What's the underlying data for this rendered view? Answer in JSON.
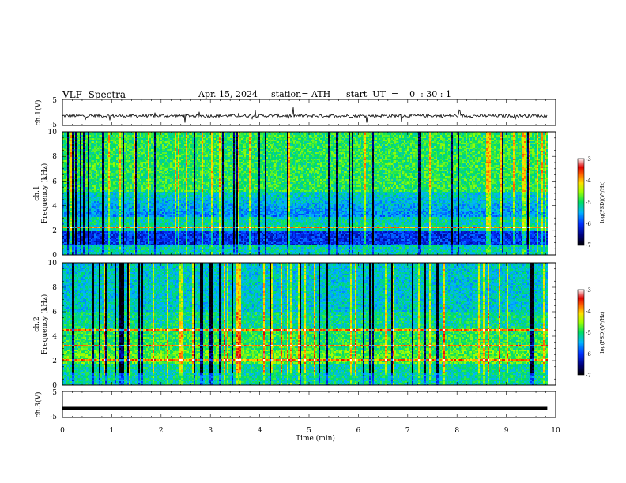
{
  "header": {
    "title": "VLF  Spectra",
    "date": "Apr. 15, 2024",
    "station": "station= ATH",
    "start_ut": "start  UT  =    0  : 30 : 1"
  },
  "chart_data": [
    {
      "type": "line",
      "title": "",
      "ylabel": "ch.1(V)",
      "ylim": [
        -5,
        5
      ],
      "yticks": [
        "5",
        "-5"
      ],
      "xlim": [
        0,
        10
      ],
      "x_end": 9.83,
      "description_values": {
        "baseline_V": -1.3,
        "noise_amplitude_V": 0.6
      }
    },
    {
      "type": "heatmap",
      "ylabel": "Frequency  (kHz)",
      "channel_label": "ch.1",
      "ylim": [
        0,
        10
      ],
      "yticks": [
        "0",
        "2",
        "4",
        "6",
        "8",
        "10"
      ],
      "xlim": [
        0,
        10
      ],
      "colorbar": {
        "label": "log(PSD)(V²/Hz)",
        "range": [
          -7,
          -3
        ],
        "ticks": [
          "-3",
          "-4",
          "-5",
          "-6",
          "-7"
        ]
      }
    },
    {
      "type": "heatmap",
      "ylabel": "Frequency  (kHz)",
      "channel_label": "ch.2",
      "ylim": [
        0,
        10
      ],
      "yticks": [
        "0",
        "2",
        "4",
        "6",
        "8",
        "10"
      ],
      "xlim": [
        0,
        10
      ],
      "colorbar": {
        "label": "log(PSD)(V²/Hz)",
        "range": [
          -7,
          -3
        ],
        "ticks": [
          "-3",
          "-4",
          "-5",
          "-6",
          "-7"
        ]
      }
    },
    {
      "type": "line",
      "ylabel": "ch.3(V)",
      "ylim": [
        -5,
        5
      ],
      "yticks": [
        "5",
        "-5"
      ],
      "xlim": [
        0,
        10
      ],
      "x_end": 9.83,
      "description_values": {
        "baseline_V": -1.5
      }
    }
  ],
  "xaxis": {
    "label": "Time  (min)",
    "ticks": [
      "0",
      "1",
      "2",
      "3",
      "4",
      "5",
      "6",
      "7",
      "8",
      "9",
      "10"
    ]
  }
}
